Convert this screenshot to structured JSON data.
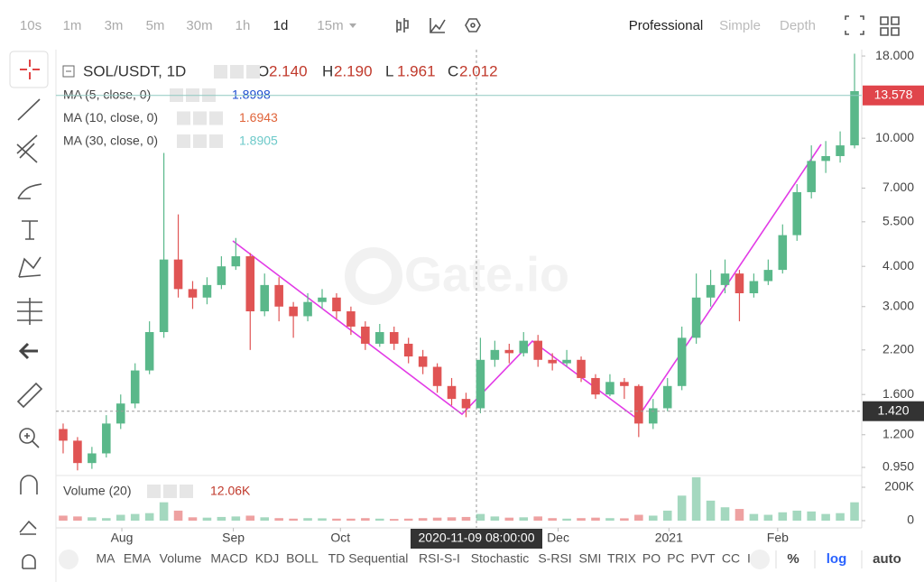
{
  "toolbar": {
    "intervals": [
      "10s",
      "1m",
      "3m",
      "5m",
      "30m",
      "1h",
      "1d",
      "15m"
    ],
    "selected": "1d",
    "views": [
      "Professional",
      "Simple",
      "Depth"
    ]
  },
  "watermark": "Gate.io",
  "legend": {
    "symbol": "SOL/USDT, 1D",
    "ohlc": [
      {
        "name": "O",
        "value": 2.14,
        "label": "2.140"
      },
      {
        "name": "H",
        "value": 2.19,
        "label": "2.190"
      },
      {
        "name": "L",
        "value": 1.961,
        "label": "1.961"
      },
      {
        "name": "C",
        "value": 2.012,
        "label": "2.012"
      }
    ],
    "indicators": [
      {
        "name": "MA (5, close, 0)",
        "value": 1.8998,
        "color": "#1f4fd0"
      },
      {
        "name": "MA (10, close, 0)",
        "value": 1.6943,
        "color": "#e0643a"
      },
      {
        "name": "MA (30, close, 0)",
        "value": 1.8905,
        "color": "#6cc9c9"
      }
    ]
  },
  "chart_data": {
    "type": "candlestick",
    "log_scale": true,
    "up_color": "#5ab88a",
    "down_color": "#e05454",
    "ylim": [
      0.908,
      18.84
    ],
    "yticks": [
      {
        "value": 18,
        "label": "18.000"
      },
      {
        "value": 10,
        "label": "10.000"
      },
      {
        "value": 7,
        "label": "7.000"
      },
      {
        "value": 5.5,
        "label": "5.500"
      },
      {
        "value": 4,
        "label": "4.000"
      },
      {
        "value": 3,
        "label": "3.000"
      },
      {
        "value": 2.2,
        "label": "2.200"
      },
      {
        "value": 1.6,
        "label": "1.600"
      },
      {
        "value": 1.2,
        "label": "1.200"
      },
      {
        "value": 0.95,
        "label": "0.950"
      }
    ],
    "xlim": [
      -0.5,
      55.5
    ],
    "xticks": [
      {
        "value": 4.08,
        "label": "Aug"
      },
      {
        "value": 11.83,
        "label": "Sep"
      },
      {
        "value": 19.27,
        "label": "Oct"
      },
      {
        "value": 34.4,
        "label": "Dec"
      },
      {
        "value": 42.1,
        "label": "2021"
      },
      {
        "value": 49.66,
        "label": "Feb"
      }
    ],
    "last_price": 13.578,
    "crosshair": {
      "label": "2020-11-09 08:00:00",
      "price": {
        "value": 1.42,
        "label": "1.420"
      }
    },
    "candles": [
      [
        1.25,
        1.3,
        1.05,
        1.15
      ],
      [
        1.15,
        1.18,
        0.93,
        0.98
      ],
      [
        0.98,
        1.1,
        0.94,
        1.05
      ],
      [
        1.05,
        1.38,
        1.02,
        1.3
      ],
      [
        1.3,
        1.6,
        1.25,
        1.5
      ],
      [
        1.5,
        2.0,
        1.45,
        1.9
      ],
      [
        1.9,
        2.7,
        1.85,
        2.5
      ],
      [
        2.5,
        9.0,
        2.4,
        4.2
      ],
      [
        4.2,
        5.8,
        3.2,
        3.4
      ],
      [
        3.4,
        3.6,
        2.95,
        3.2
      ],
      [
        3.2,
        3.7,
        3.05,
        3.5
      ],
      [
        3.5,
        4.3,
        3.4,
        4.0
      ],
      [
        4.0,
        4.9,
        3.9,
        4.3
      ],
      [
        4.3,
        4.4,
        2.2,
        2.9
      ],
      [
        2.9,
        3.8,
        2.8,
        3.5
      ],
      [
        3.5,
        3.7,
        2.7,
        3.0
      ],
      [
        3.0,
        3.1,
        2.4,
        2.8
      ],
      [
        2.8,
        3.3,
        2.7,
        3.1
      ],
      [
        3.1,
        3.4,
        2.95,
        3.2
      ],
      [
        3.2,
        3.3,
        2.75,
        2.9
      ],
      [
        2.9,
        3.0,
        2.45,
        2.6
      ],
      [
        2.6,
        2.7,
        2.2,
        2.3
      ],
      [
        2.3,
        2.65,
        2.25,
        2.5
      ],
      [
        2.5,
        2.6,
        2.2,
        2.3
      ],
      [
        2.3,
        2.4,
        2.0,
        2.1
      ],
      [
        2.1,
        2.2,
        1.85,
        1.95
      ],
      [
        1.95,
        2.0,
        1.62,
        1.7
      ],
      [
        1.7,
        1.8,
        1.48,
        1.55
      ],
      [
        1.55,
        1.62,
        1.36,
        1.45
      ],
      [
        1.45,
        2.4,
        1.4,
        2.05
      ],
      [
        2.05,
        2.35,
        1.95,
        2.2
      ],
      [
        2.2,
        2.3,
        2.0,
        2.15
      ],
      [
        2.15,
        2.5,
        2.1,
        2.35
      ],
      [
        2.35,
        2.45,
        1.95,
        2.05
      ],
      [
        2.05,
        2.15,
        1.9,
        2.0
      ],
      [
        2.0,
        2.2,
        1.95,
        2.05
      ],
      [
        2.05,
        2.1,
        1.75,
        1.8
      ],
      [
        1.8,
        1.85,
        1.55,
        1.6
      ],
      [
        1.6,
        1.85,
        1.58,
        1.75
      ],
      [
        1.75,
        1.8,
        1.55,
        1.7
      ],
      [
        1.7,
        1.72,
        1.18,
        1.3
      ],
      [
        1.3,
        1.55,
        1.25,
        1.45
      ],
      [
        1.45,
        1.8,
        1.42,
        1.7
      ],
      [
        1.7,
        2.6,
        1.65,
        2.4
      ],
      [
        2.4,
        3.8,
        2.3,
        3.2
      ],
      [
        3.2,
        3.9,
        3.0,
        3.5
      ],
      [
        3.5,
        4.2,
        3.3,
        3.8
      ],
      [
        3.8,
        3.9,
        2.7,
        3.3
      ],
      [
        3.3,
        3.8,
        3.2,
        3.6
      ],
      [
        3.6,
        4.2,
        3.5,
        3.9
      ],
      [
        3.9,
        5.4,
        3.8,
        5.0
      ],
      [
        5.0,
        7.2,
        4.8,
        6.8
      ],
      [
        6.8,
        9.5,
        6.5,
        8.5
      ],
      [
        8.5,
        9.8,
        7.8,
        8.8
      ],
      [
        8.8,
        10.5,
        8.4,
        9.5
      ],
      [
        9.5,
        18.3,
        9.3,
        14.0
      ]
    ],
    "volume": {
      "name": "Volume (20)",
      "last": {
        "value": 12060,
        "label": "12.06K"
      },
      "ylim": [
        0,
        265000
      ],
      "yticks": [
        {
          "value": 200000,
          "label": "200K"
        },
        0
      ],
      "values": [
        30000,
        25000,
        20000,
        15000,
        35000,
        40000,
        45000,
        110000,
        60000,
        20000,
        18000,
        22000,
        25000,
        30000,
        20000,
        15000,
        12000,
        15000,
        14000,
        12000,
        12000,
        15000,
        12000,
        10000,
        12000,
        15000,
        18000,
        20000,
        22000,
        40000,
        25000,
        18000,
        20000,
        25000,
        15000,
        12000,
        15000,
        18000,
        15000,
        14000,
        35000,
        30000,
        60000,
        150000,
        260000,
        120000,
        80000,
        70000,
        40000,
        35000,
        50000,
        60000,
        55000,
        40000,
        45000,
        110000
      ]
    }
  },
  "indicator_bar": {
    "items": [
      "MA",
      "EMA",
      "Volume",
      "MACD",
      "KDJ",
      "BOLL",
      "TD Sequential",
      "RSI-S-I",
      "Stochastic",
      "S-RSI",
      "SMI",
      "TRIX",
      "PO",
      "PC",
      "PVT",
      "CC",
      "I"
    ],
    "options": [
      "%",
      "log",
      "auto"
    ]
  }
}
